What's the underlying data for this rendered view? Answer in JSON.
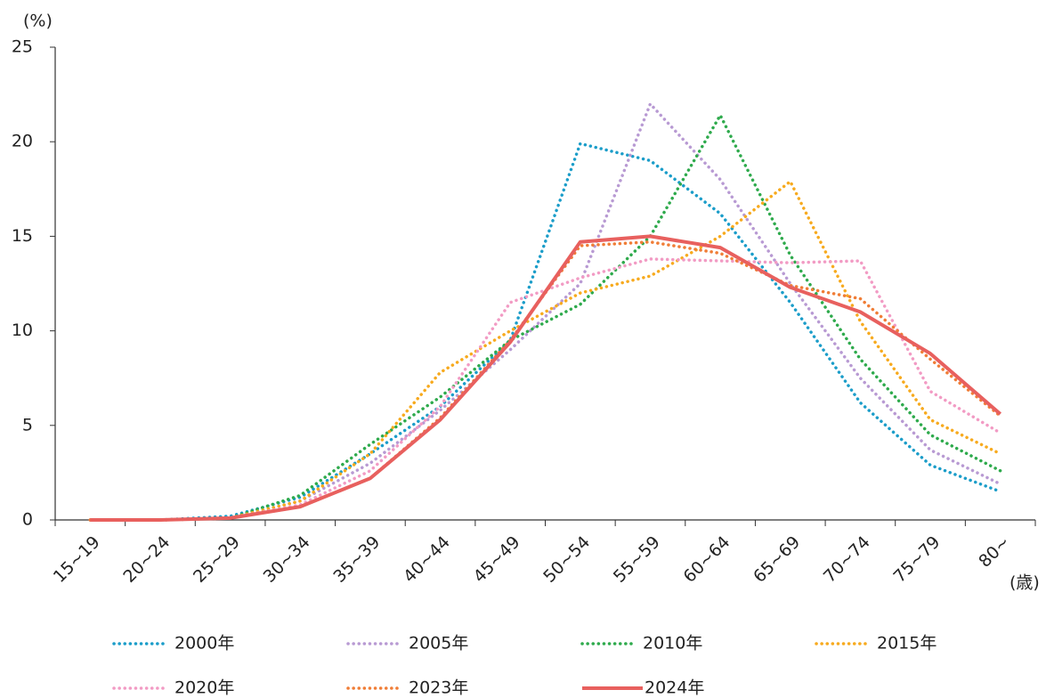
{
  "chart_data": {
    "type": "line",
    "y_unit_label": "(%)",
    "x_unit_label": "(歳)",
    "categories": [
      "15~19",
      "20~24",
      "25~29",
      "30~34",
      "35~39",
      "40~44",
      "45~49",
      "50~54",
      "55~59",
      "60~64",
      "65~69",
      "70~74",
      "75~79",
      "80~"
    ],
    "ylim": [
      0,
      25
    ],
    "yticks": [
      0,
      5,
      10,
      15,
      20,
      25
    ],
    "series": [
      {
        "name": "2000年",
        "color": "#1b9dc9",
        "style": "dotted",
        "values": [
          0,
          0,
          0.2,
          1.2,
          3.5,
          6.0,
          9.5,
          19.9,
          19.0,
          16.2,
          11.5,
          6.2,
          2.9,
          1.5
        ]
      },
      {
        "name": "2005年",
        "color": "#b89ad3",
        "style": "dotted",
        "values": [
          0,
          0,
          0.1,
          1.0,
          3.0,
          5.8,
          9.0,
          12.5,
          22.0,
          18.0,
          12.5,
          7.5,
          3.7,
          1.9
        ]
      },
      {
        "name": "2010年",
        "color": "#2eaa4c",
        "style": "dotted",
        "values": [
          0,
          0,
          0.1,
          1.3,
          4.0,
          6.5,
          9.5,
          11.4,
          15.0,
          21.4,
          14.0,
          8.5,
          4.5,
          2.6
        ]
      },
      {
        "name": "2015年",
        "color": "#f7aa1e",
        "style": "dotted",
        "values": [
          0,
          0,
          0.1,
          1.0,
          3.5,
          7.8,
          10.0,
          12.0,
          12.9,
          15.0,
          17.9,
          10.5,
          5.3,
          3.5
        ]
      },
      {
        "name": "2020年",
        "color": "#f29bc4",
        "style": "dotted",
        "values": [
          0,
          0,
          0.1,
          0.8,
          2.6,
          6.0,
          11.5,
          12.8,
          13.8,
          13.7,
          13.6,
          13.7,
          6.8,
          4.6
        ]
      },
      {
        "name": "2023年",
        "color": "#f07d36",
        "style": "dotted",
        "values": [
          0,
          0,
          0.1,
          0.7,
          2.2,
          5.4,
          9.5,
          14.5,
          14.7,
          14.1,
          12.4,
          11.7,
          8.5,
          5.5
        ]
      },
      {
        "name": "2024年",
        "color": "#e8605e",
        "style": "solid",
        "values": [
          0,
          0,
          0.1,
          0.7,
          2.2,
          5.3,
          9.4,
          14.7,
          15.0,
          14.4,
          12.3,
          11.0,
          8.8,
          5.6
        ]
      }
    ]
  }
}
